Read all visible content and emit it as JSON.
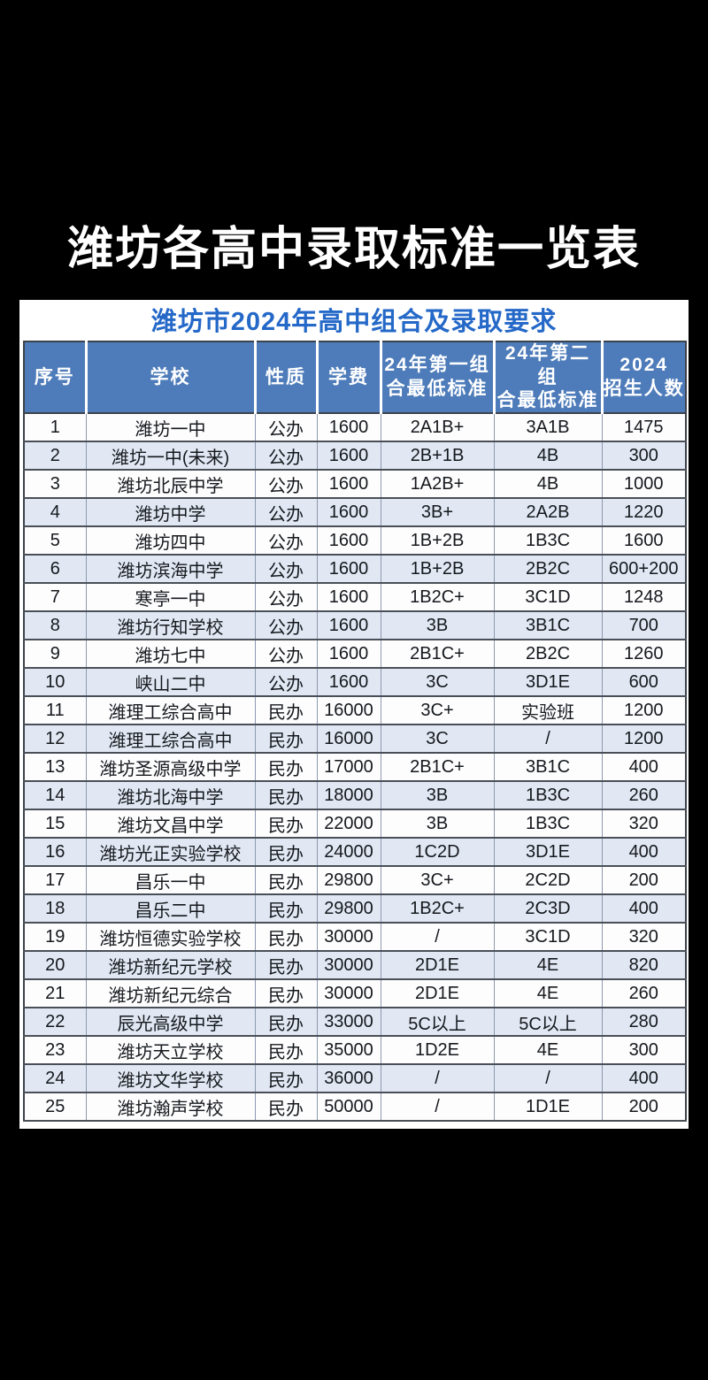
{
  "poster": {
    "title": "潍坊各高中录取标准一览表"
  },
  "card": {
    "title": "潍坊市2024年高中组合及录取要求"
  },
  "theme": {
    "poster_bg": "#000000",
    "poster_title_color": "#ffffff",
    "card_bg": "#ffffff",
    "card_title_color": "#2468c8",
    "header_bg": "#4e7cba",
    "header_text_color": "#ffffff",
    "alt_row_bg": "#e1e8f4",
    "row_bg": "#fdfdfe",
    "grid_line_color": "#4a4f57"
  },
  "table": {
    "columns": [
      {
        "key": "index",
        "label": "序号"
      },
      {
        "key": "school",
        "label": "学校"
      },
      {
        "key": "type",
        "label": "性质"
      },
      {
        "key": "fee",
        "label": "学费"
      },
      {
        "key": "group1",
        "label": "24年第一组\n合最低标准"
      },
      {
        "key": "group2",
        "label": "24年第二组\n合最低标准"
      },
      {
        "key": "enrollment",
        "label": "2024\n招生人数"
      }
    ],
    "rows": [
      [
        "1",
        "潍坊一中",
        "公办",
        "1600",
        "2A1B+",
        "3A1B",
        "1475"
      ],
      [
        "2",
        "潍坊一中(未来)",
        "公办",
        "1600",
        "2B+1B",
        "4B",
        "300"
      ],
      [
        "3",
        "潍坊北辰中学",
        "公办",
        "1600",
        "1A2B+",
        "4B",
        "1000"
      ],
      [
        "4",
        "潍坊中学",
        "公办",
        "1600",
        "3B+",
        "2A2B",
        "1220"
      ],
      [
        "5",
        "潍坊四中",
        "公办",
        "1600",
        "1B+2B",
        "1B3C",
        "1600"
      ],
      [
        "6",
        "潍坊滨海中学",
        "公办",
        "1600",
        "1B+2B",
        "2B2C",
        "600+200"
      ],
      [
        "7",
        "寒亭一中",
        "公办",
        "1600",
        "1B2C+",
        "3C1D",
        "1248"
      ],
      [
        "8",
        "潍坊行知学校",
        "公办",
        "1600",
        "3B",
        "3B1C",
        "700"
      ],
      [
        "9",
        "潍坊七中",
        "公办",
        "1600",
        "2B1C+",
        "2B2C",
        "1260"
      ],
      [
        "10",
        "峡山二中",
        "公办",
        "1600",
        "3C",
        "3D1E",
        "600"
      ],
      [
        "11",
        "潍理工综合高中",
        "民办",
        "16000",
        "3C+",
        "实验班",
        "1200"
      ],
      [
        "12",
        "潍理工综合高中",
        "民办",
        "16000",
        "3C",
        "/",
        "1200"
      ],
      [
        "13",
        "潍坊圣源高级中学",
        "民办",
        "17000",
        "2B1C+",
        "3B1C",
        "400"
      ],
      [
        "14",
        "潍坊北海中学",
        "民办",
        "18000",
        "3B",
        "1B3C",
        "260"
      ],
      [
        "15",
        "潍坊文昌中学",
        "民办",
        "22000",
        "3B",
        "1B3C",
        "320"
      ],
      [
        "16",
        "潍坊光正实验学校",
        "民办",
        "24000",
        "1C2D",
        "3D1E",
        "400"
      ],
      [
        "17",
        "昌乐一中",
        "民办",
        "29800",
        "3C+",
        "2C2D",
        "200"
      ],
      [
        "18",
        "昌乐二中",
        "民办",
        "29800",
        "1B2C+",
        "2C3D",
        "400"
      ],
      [
        "19",
        "潍坊恒德实验学校",
        "民办",
        "30000",
        "/",
        "3C1D",
        "320"
      ],
      [
        "20",
        "潍坊新纪元学校",
        "民办",
        "30000",
        "2D1E",
        "4E",
        "820"
      ],
      [
        "21",
        "潍坊新纪元综合",
        "民办",
        "30000",
        "2D1E",
        "4E",
        "260"
      ],
      [
        "22",
        "辰光高级中学",
        "民办",
        "33000",
        "5C以上",
        "5C以上",
        "280"
      ],
      [
        "23",
        "潍坊天立学校",
        "民办",
        "35000",
        "1D2E",
        "4E",
        "300"
      ],
      [
        "24",
        "潍坊文华学校",
        "民办",
        "36000",
        "/",
        "/",
        "400"
      ],
      [
        "25",
        "潍坊瀚声学校",
        "民办",
        "50000",
        "/",
        "1D1E",
        "200"
      ]
    ]
  }
}
